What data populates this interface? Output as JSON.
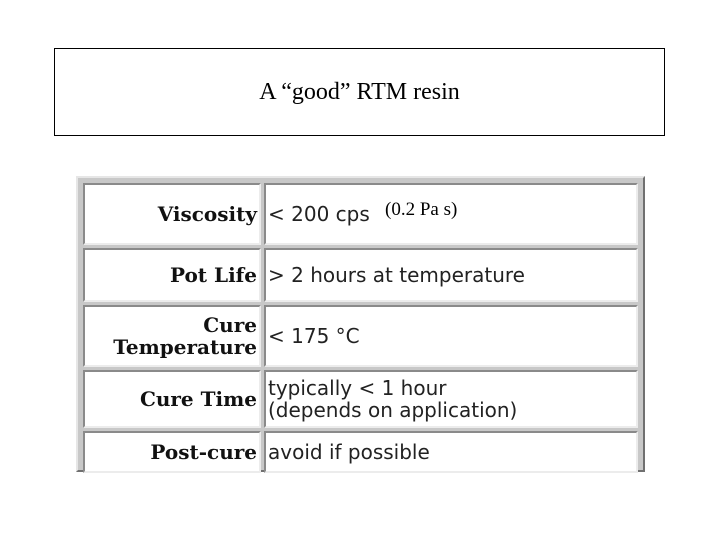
{
  "slide": {
    "title": "A “good” RTM resin"
  },
  "table": {
    "rows": [
      {
        "label": "Viscosity",
        "value": "< 200 cps"
      },
      {
        "label": "Pot Life",
        "value": "> 2 hours at temperature"
      },
      {
        "label_line1": "Cure",
        "label_line2": "Temperature",
        "value": "< 175 °C"
      },
      {
        "label": "Cure Time",
        "value_line1": "typically < 1 hour",
        "value_line2": "(depends on application)"
      },
      {
        "label": "Post-cure",
        "value": "avoid if possible"
      }
    ]
  },
  "annotation": {
    "viscosity_si": "(0.2 Pa s)"
  }
}
